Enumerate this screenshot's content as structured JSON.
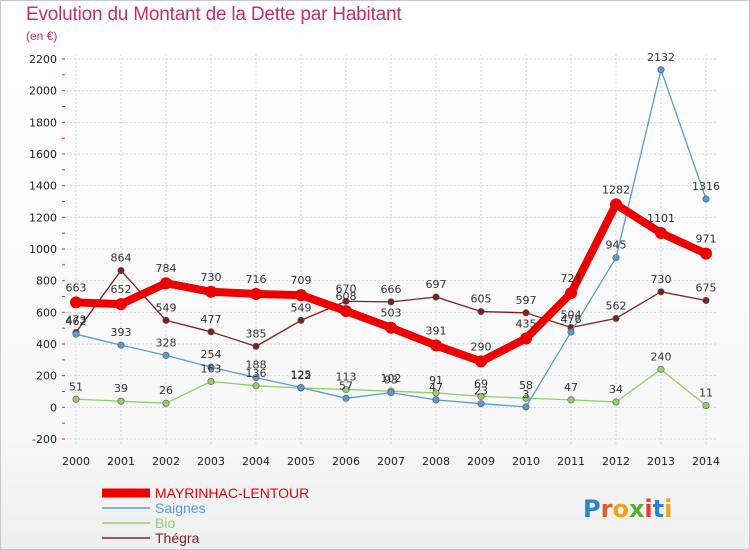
{
  "chart_data": {
    "type": "line",
    "title": "Evolution du Montant de la Dette par Habitant",
    "subtitle": "(en €)",
    "x": [
      "2000",
      "2001",
      "2002",
      "2003",
      "2004",
      "2005",
      "2006",
      "2007",
      "2008",
      "2009",
      "2010",
      "2011",
      "2012",
      "2013",
      "2014"
    ],
    "ylim": [
      -200,
      2200
    ],
    "yticks": [
      -200,
      0,
      200,
      400,
      600,
      800,
      1000,
      1200,
      1400,
      1600,
      1800,
      2000,
      2200
    ],
    "grid": true,
    "legend": "bottom-left",
    "series": [
      {
        "name": "Thégra",
        "color": "#7a2222",
        "values": [
          473,
          864,
          549,
          477,
          385,
          549,
          670,
          666,
          697,
          605,
          597,
          504,
          562,
          730,
          675
        ]
      },
      {
        "name": "Bio",
        "color": "#8fd068",
        "values": [
          51,
          39,
          26,
          163,
          136,
          122,
          113,
          102,
          91,
          69,
          58,
          47,
          34,
          240,
          11
        ]
      },
      {
        "name": "Saignes",
        "color": "#5b9bd0",
        "values": [
          462,
          393,
          328,
          254,
          188,
          125,
          57,
          93,
          47,
          23,
          3,
          476,
          945,
          2132,
          1316
        ]
      },
      {
        "name": "MAYRINHAC-LENTOUR",
        "color": "#ee0000",
        "values": [
          663,
          652,
          784,
          730,
          716,
          709,
          608,
          503,
          391,
          290,
          435,
          721,
          1282,
          1101,
          971
        ]
      }
    ]
  },
  "legend_items": [
    {
      "name": "MAYRINHAC-LENTOUR",
      "color": "#ee0000"
    },
    {
      "name": "Saignes",
      "color": "#5b9bd0"
    },
    {
      "name": "Bio",
      "color": "#8fd068"
    },
    {
      "name": "Thégra",
      "color": "#7a2222"
    }
  ],
  "logo": {
    "text": "Proxiti"
  }
}
